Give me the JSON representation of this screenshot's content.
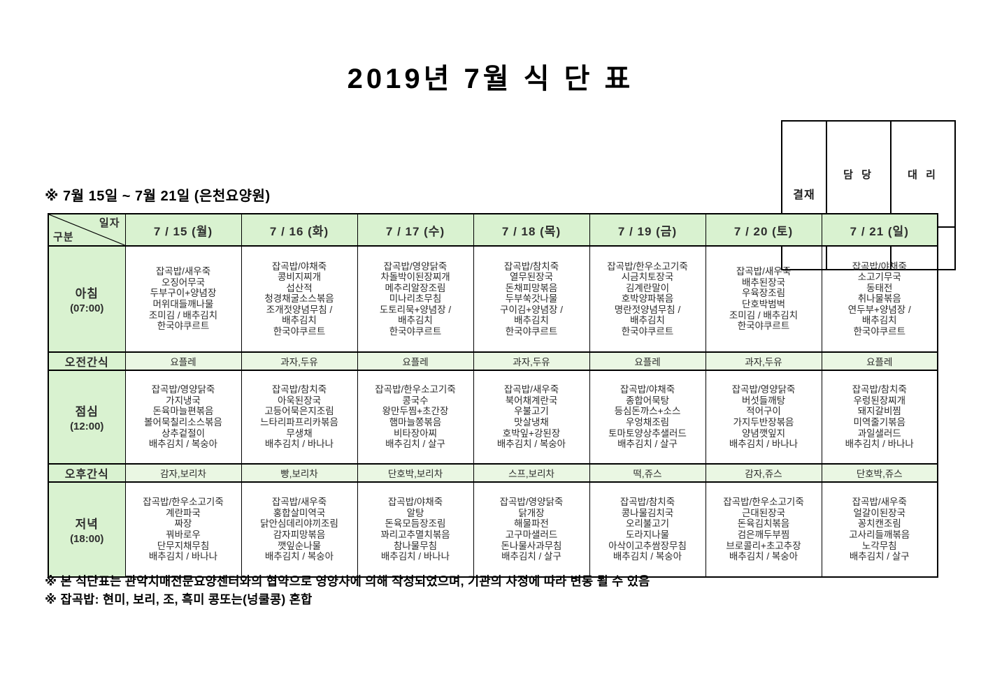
{
  "title": "2019년 7월 식 단 표",
  "approval": {
    "label": "결재",
    "col1": "담 당",
    "col2": "대 리"
  },
  "subtitle": "※ 7월 15일 ~ 7월 21일 (은천요양원)",
  "table": {
    "corner": {
      "top": "일자",
      "bottom": "구분"
    },
    "days": [
      "7 / 15 (월)",
      "7 / 16 (화)",
      "7 / 17 (수)",
      "7 / 18 (목)",
      "7 / 19 (금)",
      "7 / 20 (토)",
      "7 / 21 (일)"
    ],
    "rows": [
      {
        "label": "아침",
        "time": "(07:00)",
        "type": "meal",
        "cells": [
          [
            "잡곡밥/새우죽",
            "오징어무국",
            "두부구이+양념장",
            "머위대들깨나물",
            "조미김 / 배추김치",
            "한국야쿠르트"
          ],
          [
            "잡곡밥/야채죽",
            "콩비지찌개",
            "섭산적",
            "청경채굴소스볶음",
            "조개젓양념무침 /",
            "배추김치",
            "한국야쿠르트"
          ],
          [
            "잡곡밥/영양닭죽",
            "차돌박이된장찌개",
            "메추리알장조림",
            "미나리초무침",
            "도토리묵+양념장 /",
            "배추김치",
            "한국야쿠르트"
          ],
          [
            "잡곡밥/참치죽",
            "열무된장국",
            "돈채피망볶음",
            "두부쑥갓나물",
            "구이김+양념장 /",
            "배추김치",
            "한국야쿠르트"
          ],
          [
            "잡곡밥/한우소고기죽",
            "시금치토장국",
            "김계란말이",
            "호박양파볶음",
            "명란젓양념무침 /",
            "배추김치",
            "한국야쿠르트"
          ],
          [
            "잡곡밥/새우죽",
            "배추된장국",
            "우육장조림",
            "단호박범벅",
            "조미김 / 배추김치",
            "한국야쿠르트"
          ],
          [
            "잡곡밥/야채죽",
            "소고기무국",
            "동태전",
            "취나물볶음",
            "연두부+양념장 /",
            "배추김치",
            "한국야쿠르트"
          ]
        ]
      },
      {
        "label": "오전간식",
        "type": "snack",
        "cells": [
          "요플레",
          "과자,두유",
          "요플레",
          "과자,두유",
          "요플레",
          "과자,두유",
          "요플레"
        ]
      },
      {
        "label": "점심",
        "time": "(12:00)",
        "type": "meal",
        "cells": [
          [
            "잡곡밥/영양닭죽",
            "가지냉국",
            "돈육마늘편볶음",
            "볼어묵칠리소스볶음",
            "상추겉절이",
            "배추김치 / 복숭아"
          ],
          [
            "잡곡밥/참치죽",
            "아욱된장국",
            "고등어묵은지조림",
            "느타리파프리카볶음",
            "무생채",
            "배추김치 / 바나나"
          ],
          [
            "잡곡밥/한우소고기죽",
            "콩국수",
            "왕만두찜+초간장",
            "햄마늘쫑볶음",
            "비타장아찌",
            "배추김치 / 살구"
          ],
          [
            "잡곡밥/새우죽",
            "북어채계란국",
            "우불고기",
            "맛살냉채",
            "호박잎+강된장",
            "배추김치 / 복숭아"
          ],
          [
            "잡곡밥/야채죽",
            "종합어묵탕",
            "등심돈까스+소스",
            "우엉채조림",
            "토마토양상추샐러드",
            "배추김치 / 살구"
          ],
          [
            "잡곡밥/영양닭죽",
            "버섯들깨탕",
            "적어구이",
            "가지두반장볶음",
            "양념깻잎지",
            "배추김치 / 바나나"
          ],
          [
            "잡곡밥/참치죽",
            "우렁된장찌개",
            "돼지갈비찜",
            "미역줄기볶음",
            "과일샐러드",
            "배추김치 / 바나나"
          ]
        ]
      },
      {
        "label": "오후간식",
        "type": "snack",
        "cells": [
          "감자,보리차",
          "빵,보리차",
          "단호박,보리차",
          "스프,보리차",
          "떡,쥬스",
          "감자,쥬스",
          "단호박,쥬스"
        ]
      },
      {
        "label": "저녁",
        "time": "(18:00)",
        "type": "meal",
        "cells": [
          [
            "잡곡밥/한우소고기죽",
            "계란파국",
            "짜장",
            "꿔바로우",
            "단무지채무침",
            "배추김치 / 바나나"
          ],
          [
            "잡곡밥/새우죽",
            "홍합살미역국",
            "닭안심데리야끼조림",
            "감자피망볶음",
            "깻잎순나물",
            "배추김치 / 복숭아"
          ],
          [
            "잡곡밥/야채죽",
            "알탕",
            "돈육모듬장조림",
            "꽈리고추멸치볶음",
            "참나물무침",
            "배추김치 / 바나나"
          ],
          [
            "잡곡밥/영양닭죽",
            "닭개장",
            "해물파전",
            "고구마샐러드",
            "돈나물사과무침",
            "배추김치 / 살구"
          ],
          [
            "잡곡밥/참치죽",
            "콩나물김치국",
            "오리불고기",
            "도라지나물",
            "아삭이고추쌈장무침",
            "배추김치 / 복숭아"
          ],
          [
            "잡곡밥/한우소고기죽",
            "근대된장국",
            "돈육김치볶음",
            "검은깨두부찜",
            "브로콜리+초고추장",
            "배추김치 / 복숭아"
          ],
          [
            "잡곡밥/새우죽",
            "얼갈이된장국",
            "꽁치캔조림",
            "고사리들깨볶음",
            "노각무침",
            "배추김치 / 살구"
          ]
        ]
      }
    ]
  },
  "notes": [
    "※ 본 식단표는 관악치매전문요양센터와의 협약으로 영양사에 의해 작성되었으며, 기관의 사정에 따라 변동 될 수 있음",
    "※ 잡곡밥: 현미, 보리, 조, 흑미 콩또는(넝쿨콩) 혼합"
  ],
  "colors": {
    "header_green": "#d9f2d0",
    "snack_green": "#eaf7e3",
    "border": "#000000"
  }
}
